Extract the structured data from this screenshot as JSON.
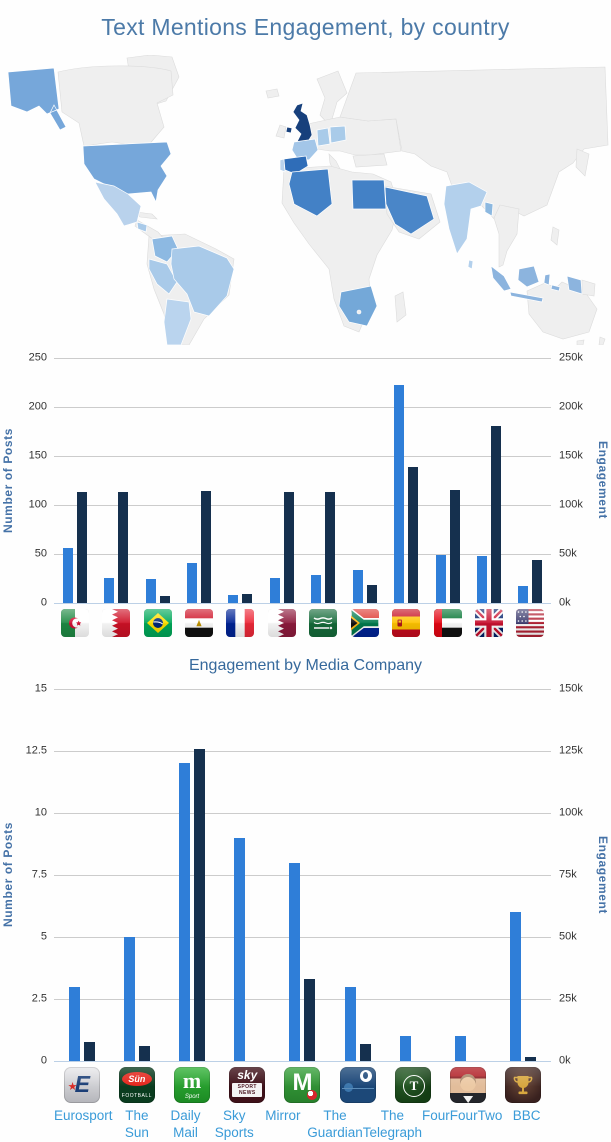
{
  "page": {
    "title": "Text Mentions Engagement, by country"
  },
  "theme": {
    "title_color": "#4c7aa8",
    "subtitle_color": "#36699c",
    "axis_title_color": "#4572a7",
    "tick_label_color": "#333333",
    "category_label_color": "#3a9bd8",
    "gridline_color": "#cccccc",
    "posts_bar_color": "#2f7ed8",
    "engagement_bar_color": "#15304e"
  },
  "map": {
    "type": "world-choropleth",
    "highlighted": [
      {
        "country": "United Kingdom",
        "shade": "darkest"
      },
      {
        "country": "Spain",
        "shade": "dark"
      },
      {
        "country": "Algeria",
        "shade": "medium-dark"
      },
      {
        "country": "Egypt",
        "shade": "medium-dark"
      },
      {
        "country": "Saudi Arabia",
        "shade": "medium-dark"
      },
      {
        "country": "United States",
        "shade": "medium"
      },
      {
        "country": "South Africa",
        "shade": "medium"
      },
      {
        "country": "Colombia",
        "shade": "medium-light"
      },
      {
        "country": "Indonesia",
        "shade": "medium-light"
      },
      {
        "country": "Bangladesh",
        "shade": "medium-light"
      },
      {
        "country": "Papua New Guinea",
        "shade": "medium-light"
      },
      {
        "country": "Brazil",
        "shade": "light"
      },
      {
        "country": "Peru",
        "shade": "light"
      },
      {
        "country": "France",
        "shade": "light"
      },
      {
        "country": "Germany",
        "shade": "light"
      },
      {
        "country": "Poland",
        "shade": "light"
      },
      {
        "country": "India",
        "shade": "light"
      },
      {
        "country": "Guatemala",
        "shade": "light"
      },
      {
        "country": "Sri Lanka",
        "shade": "light"
      },
      {
        "country": "Mexico",
        "shade": "lighter"
      },
      {
        "country": "Argentina",
        "shade": "lighter"
      },
      {
        "country": "Portugal",
        "shade": "lighter"
      }
    ],
    "colors": {
      "uk": "#17407c",
      "spain": "#2f6db8",
      "algeria": "#4381c6",
      "egypt": "#4381c6",
      "saudi": "#4a86c8",
      "usa": "#76a7da",
      "alaska": "#76a7da",
      "south_africa": "#74a8d8",
      "colombia": "#8db9e2",
      "indonesia": "#8cb4de",
      "bangladesh": "#8cb8e0",
      "png": "#8cb4de",
      "brazil": "#a9cae9",
      "peru": "#a9cae9",
      "france": "#a3c6e8",
      "germany": "#a9cbe9",
      "poland": "#a9cbe9",
      "india": "#b3d0ec",
      "guatemala": "#a9cae9",
      "srilanka": "#b3d0ec",
      "mexico": "#b9d2ec",
      "argentina": "#bad4ee",
      "portugal": "#b9d2ec",
      "land": "#efefef",
      "border": "#dcdcdc",
      "ocean": "#ffffff"
    }
  },
  "chart_data": [
    {
      "type": "bar",
      "title": "",
      "categories": [
        "Algeria",
        "Bahrain",
        "Brazil",
        "Egypt",
        "France",
        "Qatar",
        "Saudi Arabia",
        "South Africa",
        "Spain",
        "United Arab Emirates",
        "United Kingdom",
        "United States"
      ],
      "series": [
        {
          "name": "Number of Posts",
          "axis": "left",
          "color": "#2f7ed8",
          "values": [
            56,
            26,
            25,
            41,
            8,
            26,
            29,
            34,
            222,
            49,
            48,
            17
          ]
        },
        {
          "name": "Engagement",
          "axis": "right",
          "color": "#15304e",
          "values": [
            113000,
            113000,
            7000,
            114000,
            9000,
            113000,
            113000,
            18000,
            139000,
            115000,
            181000,
            44000
          ]
        }
      ],
      "ylabel_left": "Number of Posts",
      "ylabel_right": "Engagement",
      "ylim_left": [
        0,
        250
      ],
      "ylim_right": [
        0,
        250000
      ],
      "yticks_left": [
        "0",
        "50",
        "100",
        "150",
        "200",
        "250"
      ],
      "yticks_right": [
        "0k",
        "50k",
        "100k",
        "150k",
        "200k",
        "250k"
      ],
      "grid": true,
      "legend": "none",
      "x_labels_type": "flag-icons"
    },
    {
      "type": "bar",
      "title": "Engagement by Media Company",
      "categories": [
        "Eurosport",
        "The Sun",
        "Daily Mail",
        "Sky Sports",
        "Mirror",
        "The Guardian",
        "The Telegraph",
        "FourFourTwo",
        "BBC"
      ],
      "series": [
        {
          "name": "Number of Posts",
          "axis": "left",
          "color": "#2f7ed8",
          "values": [
            3,
            5,
            12,
            9,
            8,
            3,
            1,
            1,
            6
          ]
        },
        {
          "name": "Engagement",
          "axis": "right",
          "color": "#15304e",
          "values": [
            7500,
            6000,
            126000,
            0,
            33000,
            7000,
            0,
            0,
            1500
          ]
        }
      ],
      "ylabel_left": "Number of Posts",
      "ylabel_right": "Engagement",
      "ylim_left": [
        0,
        15
      ],
      "ylim_right": [
        0,
        150000
      ],
      "yticks_left": [
        "0",
        "2.5",
        "5",
        "7.5",
        "10",
        "12.5",
        "15"
      ],
      "yticks_right": [
        "0k",
        "25k",
        "50k",
        "75k",
        "100k",
        "125k",
        "150k"
      ],
      "grid": true,
      "legend": "none",
      "x_labels_type": "logo-icons-with-text"
    }
  ],
  "icons": {
    "flags": [
      "flag-algeria-icon",
      "flag-bahrain-icon",
      "flag-brazil-icon",
      "flag-egypt-icon",
      "flag-france-icon",
      "flag-qatar-icon",
      "flag-saudi-arabia-icon",
      "flag-south-africa-icon",
      "flag-spain-icon",
      "flag-uae-icon",
      "flag-uk-icon",
      "flag-usa-icon"
    ],
    "logos": [
      {
        "name": "eurosport-logo-icon",
        "text": "E"
      },
      {
        "name": "the-sun-logo-icon",
        "text": "Sün",
        "subtext": "FOOTBALL"
      },
      {
        "name": "daily-mail-logo-icon",
        "text": "m",
        "subtext": "Sport"
      },
      {
        "name": "sky-sports-logo-icon",
        "text": "sky",
        "subtext": "SPORT NEWS"
      },
      {
        "name": "mirror-logo-icon",
        "text": "M"
      },
      {
        "name": "guardian-logo-icon",
        "text": ""
      },
      {
        "name": "telegraph-logo-icon",
        "text": "T"
      },
      {
        "name": "fourfourtwo-logo-icon",
        "text": ""
      },
      {
        "name": "bbc-logo-icon",
        "text": ""
      }
    ]
  }
}
